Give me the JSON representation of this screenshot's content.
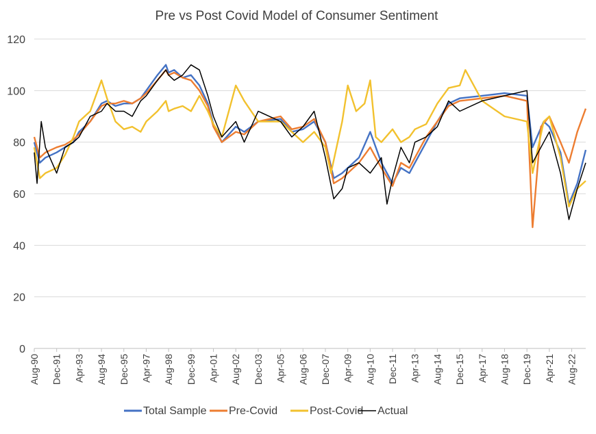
{
  "colors": {
    "total_sample": "#4472C4",
    "pre_covid": "#ED7D31",
    "post_covid": "#F2C12E",
    "actual": "#000000",
    "grid": "#D9D9D9",
    "text": "#404040"
  },
  "chart_data": {
    "type": "line",
    "title": "Pre vs Post Covid Model of Consumer Sentiment",
    "xlabel": "",
    "ylabel": "",
    "ylim": [
      0,
      120
    ],
    "yticks": [
      0,
      20,
      40,
      60,
      80,
      100,
      120
    ],
    "grid": true,
    "legend_position": "bottom",
    "x_tick_labels": [
      "Aug-90",
      "Dec-91",
      "Apr-93",
      "Aug-94",
      "Dec-95",
      "Apr-97",
      "Aug-98",
      "Dec-99",
      "Apr-01",
      "Aug-02",
      "Dec-03",
      "Apr-05",
      "Aug-06",
      "Dec-07",
      "Apr-09",
      "Aug-10",
      "Dec-11",
      "Apr-13",
      "Aug-14",
      "Dec-15",
      "Apr-17",
      "Aug-18",
      "Dec-19",
      "Apr-21",
      "Aug-22"
    ],
    "x_start": "Aug-90",
    "x_end": "Jun-23",
    "series": [
      {
        "name": "Total Sample",
        "color_key": "total_sample",
        "points": [
          [
            "Aug-90",
            80
          ],
          [
            "Dec-90",
            72
          ],
          [
            "Apr-91",
            74
          ],
          [
            "Dec-91",
            76
          ],
          [
            "Jun-92",
            78
          ],
          [
            "Dec-92",
            80
          ],
          [
            "Apr-93",
            84
          ],
          [
            "Dec-93",
            88
          ],
          [
            "Aug-94",
            95
          ],
          [
            "Dec-94",
            96
          ],
          [
            "Jun-95",
            94
          ],
          [
            "Dec-95",
            95
          ],
          [
            "Jun-96",
            95
          ],
          [
            "Dec-96",
            97
          ],
          [
            "Apr-97",
            100
          ],
          [
            "Dec-97",
            106
          ],
          [
            "Jun-98",
            110
          ],
          [
            "Aug-98",
            107
          ],
          [
            "Dec-98",
            108
          ],
          [
            "Jun-99",
            105
          ],
          [
            "Dec-99",
            106
          ],
          [
            "Jun-00",
            102
          ],
          [
            "Dec-00",
            95
          ],
          [
            "Apr-01",
            87
          ],
          [
            "Oct-01",
            80
          ],
          [
            "Aug-02",
            86
          ],
          [
            "Feb-03",
            84
          ],
          [
            "Dec-03",
            88
          ],
          [
            "Apr-05",
            89
          ],
          [
            "Dec-05",
            84
          ],
          [
            "Aug-06",
            85
          ],
          [
            "Apr-07",
            88
          ],
          [
            "Dec-07",
            80
          ],
          [
            "Jun-08",
            66
          ],
          [
            "Dec-08",
            68
          ],
          [
            "Apr-09",
            70
          ],
          [
            "Dec-09",
            74
          ],
          [
            "Aug-10",
            84
          ],
          [
            "Apr-11",
            72
          ],
          [
            "Dec-11",
            64
          ],
          [
            "Jun-12",
            70
          ],
          [
            "Dec-12",
            68
          ],
          [
            "Apr-13",
            72
          ],
          [
            "Dec-13",
            80
          ],
          [
            "Aug-14",
            88
          ],
          [
            "Apr-15",
            95
          ],
          [
            "Dec-15",
            97
          ],
          [
            "Apr-17",
            98
          ],
          [
            "Aug-18",
            99
          ],
          [
            "Dec-19",
            98
          ],
          [
            "Apr-20",
            78
          ],
          [
            "Dec-20",
            88
          ],
          [
            "Apr-21",
            86
          ],
          [
            "Dec-21",
            76
          ],
          [
            "Jun-22",
            56
          ],
          [
            "Dec-22",
            64
          ],
          [
            "Jun-23",
            77
          ]
        ]
      },
      {
        "name": "Pre-Covid",
        "color_key": "pre_covid",
        "points": [
          [
            "Aug-90",
            82
          ],
          [
            "Dec-90",
            74
          ],
          [
            "Apr-91",
            76
          ],
          [
            "Dec-91",
            78
          ],
          [
            "Jun-92",
            79
          ],
          [
            "Dec-92",
            81
          ],
          [
            "Apr-93",
            83
          ],
          [
            "Dec-93",
            88
          ],
          [
            "Aug-94",
            94
          ],
          [
            "Dec-94",
            95
          ],
          [
            "Jun-95",
            95
          ],
          [
            "Dec-95",
            96
          ],
          [
            "Jun-96",
            95
          ],
          [
            "Dec-96",
            97
          ],
          [
            "Apr-97",
            99
          ],
          [
            "Dec-97",
            104
          ],
          [
            "Jun-98",
            108
          ],
          [
            "Aug-98",
            106
          ],
          [
            "Dec-98",
            107
          ],
          [
            "Jun-99",
            105
          ],
          [
            "Dec-99",
            104
          ],
          [
            "Jun-00",
            100
          ],
          [
            "Dec-00",
            94
          ],
          [
            "Apr-01",
            86
          ],
          [
            "Oct-01",
            80
          ],
          [
            "Aug-02",
            84
          ],
          [
            "Feb-03",
            83
          ],
          [
            "Dec-03",
            88
          ],
          [
            "Apr-05",
            90
          ],
          [
            "Dec-05",
            85
          ],
          [
            "Aug-06",
            86
          ],
          [
            "Apr-07",
            89
          ],
          [
            "Dec-07",
            80
          ],
          [
            "Jun-08",
            64
          ],
          [
            "Dec-08",
            66
          ],
          [
            "Apr-09",
            68
          ],
          [
            "Dec-09",
            72
          ],
          [
            "Aug-10",
            78
          ],
          [
            "Apr-11",
            70
          ],
          [
            "Dec-11",
            63
          ],
          [
            "Jun-12",
            72
          ],
          [
            "Dec-12",
            70
          ],
          [
            "Apr-13",
            74
          ],
          [
            "Dec-13",
            82
          ],
          [
            "Aug-14",
            88
          ],
          [
            "Apr-15",
            94
          ],
          [
            "Dec-15",
            96
          ],
          [
            "Apr-17",
            97
          ],
          [
            "Aug-18",
            98
          ],
          [
            "Dec-19",
            96
          ],
          [
            "Apr-20",
            47
          ],
          [
            "Oct-20",
            86
          ],
          [
            "Apr-21",
            90
          ],
          [
            "Dec-21",
            80
          ],
          [
            "Jun-22",
            72
          ],
          [
            "Dec-22",
            84
          ],
          [
            "Jun-23",
            93
          ]
        ]
      },
      {
        "name": "Post-Covid",
        "color_key": "post_covid",
        "points": [
          [
            "Aug-90",
            78
          ],
          [
            "Dec-90",
            66
          ],
          [
            "Apr-91",
            68
          ],
          [
            "Dec-91",
            70
          ],
          [
            "Jun-92",
            75
          ],
          [
            "Dec-92",
            82
          ],
          [
            "Apr-93",
            88
          ],
          [
            "Dec-93",
            92
          ],
          [
            "Aug-94",
            104
          ],
          [
            "Dec-94",
            97
          ],
          [
            "Jun-95",
            88
          ],
          [
            "Dec-95",
            85
          ],
          [
            "Jun-96",
            86
          ],
          [
            "Dec-96",
            84
          ],
          [
            "Apr-97",
            88
          ],
          [
            "Dec-97",
            92
          ],
          [
            "Jun-98",
            96
          ],
          [
            "Aug-98",
            92
          ],
          [
            "Dec-98",
            93
          ],
          [
            "Jun-99",
            94
          ],
          [
            "Dec-99",
            92
          ],
          [
            "Jun-00",
            98
          ],
          [
            "Dec-00",
            92
          ],
          [
            "Apr-01",
            87
          ],
          [
            "Oct-01",
            82
          ],
          [
            "Aug-02",
            102
          ],
          [
            "Feb-03",
            96
          ],
          [
            "Dec-03",
            88
          ],
          [
            "Apr-05",
            88
          ],
          [
            "Dec-05",
            84
          ],
          [
            "Aug-06",
            80
          ],
          [
            "Apr-07",
            84
          ],
          [
            "Dec-07",
            78
          ],
          [
            "Apr-08",
            68
          ],
          [
            "Dec-08",
            88
          ],
          [
            "Apr-09",
            102
          ],
          [
            "Oct-09",
            92
          ],
          [
            "Apr-10",
            95
          ],
          [
            "Aug-10",
            104
          ],
          [
            "Dec-10",
            82
          ],
          [
            "Apr-11",
            80
          ],
          [
            "Dec-11",
            85
          ],
          [
            "Jun-12",
            80
          ],
          [
            "Dec-12",
            82
          ],
          [
            "Apr-13",
            85
          ],
          [
            "Dec-13",
            87
          ],
          [
            "Aug-14",
            95
          ],
          [
            "Apr-15",
            101
          ],
          [
            "Dec-15",
            102
          ],
          [
            "Apr-16",
            108
          ],
          [
            "Apr-17",
            96
          ],
          [
            "Aug-18",
            90
          ],
          [
            "Dec-19",
            88
          ],
          [
            "Apr-20",
            68
          ],
          [
            "Dec-20",
            88
          ],
          [
            "Apr-21",
            90
          ],
          [
            "Dec-21",
            74
          ],
          [
            "Jun-22",
            55
          ],
          [
            "Dec-22",
            62
          ],
          [
            "Jun-23",
            65
          ]
        ]
      },
      {
        "name": "Actual",
        "color_key": "actual",
        "points": [
          [
            "Aug-90",
            76
          ],
          [
            "Oct-90",
            64
          ],
          [
            "Jan-91",
            88
          ],
          [
            "Apr-91",
            78
          ],
          [
            "Dec-91",
            68
          ],
          [
            "Jun-92",
            78
          ],
          [
            "Dec-92",
            80
          ],
          [
            "Apr-93",
            82
          ],
          [
            "Dec-93",
            90
          ],
          [
            "Aug-94",
            92
          ],
          [
            "Dec-94",
            95
          ],
          [
            "Jun-95",
            92
          ],
          [
            "Dec-95",
            92
          ],
          [
            "Jun-96",
            90
          ],
          [
            "Dec-96",
            96
          ],
          [
            "Apr-97",
            98
          ],
          [
            "Dec-97",
            104
          ],
          [
            "Jun-98",
            108
          ],
          [
            "Aug-98",
            106
          ],
          [
            "Dec-98",
            104
          ],
          [
            "Jun-99",
            106
          ],
          [
            "Dec-99",
            110
          ],
          [
            "Jun-00",
            108
          ],
          [
            "Dec-00",
            98
          ],
          [
            "Apr-01",
            90
          ],
          [
            "Oct-01",
            82
          ],
          [
            "Aug-02",
            88
          ],
          [
            "Feb-03",
            80
          ],
          [
            "Dec-03",
            92
          ],
          [
            "Apr-05",
            88
          ],
          [
            "Dec-05",
            82
          ],
          [
            "Aug-06",
            86
          ],
          [
            "Apr-07",
            92
          ],
          [
            "Dec-07",
            74
          ],
          [
            "Jun-08",
            58
          ],
          [
            "Dec-08",
            62
          ],
          [
            "Apr-09",
            70
          ],
          [
            "Dec-09",
            72
          ],
          [
            "Aug-10",
            68
          ],
          [
            "Apr-11",
            74
          ],
          [
            "Aug-11",
            56
          ],
          [
            "Dec-11",
            66
          ],
          [
            "Jun-12",
            78
          ],
          [
            "Dec-12",
            72
          ],
          [
            "Apr-13",
            80
          ],
          [
            "Dec-13",
            82
          ],
          [
            "Aug-14",
            86
          ],
          [
            "Apr-15",
            96
          ],
          [
            "Dec-15",
            92
          ],
          [
            "Apr-17",
            96
          ],
          [
            "Aug-18",
            98
          ],
          [
            "Dec-19",
            100
          ],
          [
            "Apr-20",
            72
          ],
          [
            "Dec-20",
            80
          ],
          [
            "Apr-21",
            84
          ],
          [
            "Dec-21",
            68
          ],
          [
            "Jun-22",
            50
          ],
          [
            "Dec-22",
            62
          ],
          [
            "Jun-23",
            72
          ]
        ]
      }
    ]
  }
}
